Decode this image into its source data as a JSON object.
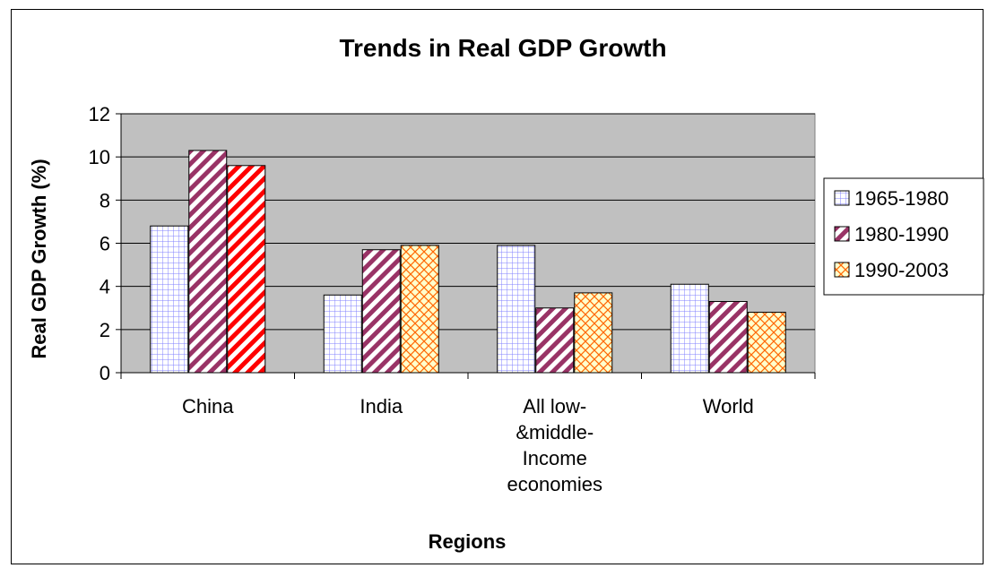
{
  "chart_data": {
    "type": "bar",
    "title": "Trends in Real GDP Growth",
    "xlabel": "Regions",
    "ylabel": "Real GDP Growth (%)",
    "ylim": [
      0,
      12
    ],
    "yticks": [
      0,
      2,
      4,
      6,
      8,
      10,
      12
    ],
    "grid": true,
    "legend_position": "right",
    "categories": [
      [
        "China"
      ],
      [
        "India"
      ],
      [
        "All low-",
        "&middle-",
        "Income",
        "economies"
      ],
      [
        "World"
      ]
    ],
    "series": [
      {
        "name": "1965-1980",
        "values": [
          6.8,
          3.6,
          5.9,
          4.1
        ],
        "color": "#9999ff",
        "pattern": "grid"
      },
      {
        "name": "1980-1990",
        "values": [
          10.3,
          5.7,
          3.0,
          3.3
        ],
        "color": "#993366",
        "pattern": "diagonal"
      },
      {
        "name": "1990-2003",
        "values": [
          9.6,
          5.9,
          3.7,
          2.8
        ],
        "color": "#ff9933",
        "pattern": "crosshatch"
      }
    ],
    "plot_background": "#c0c0c0"
  }
}
